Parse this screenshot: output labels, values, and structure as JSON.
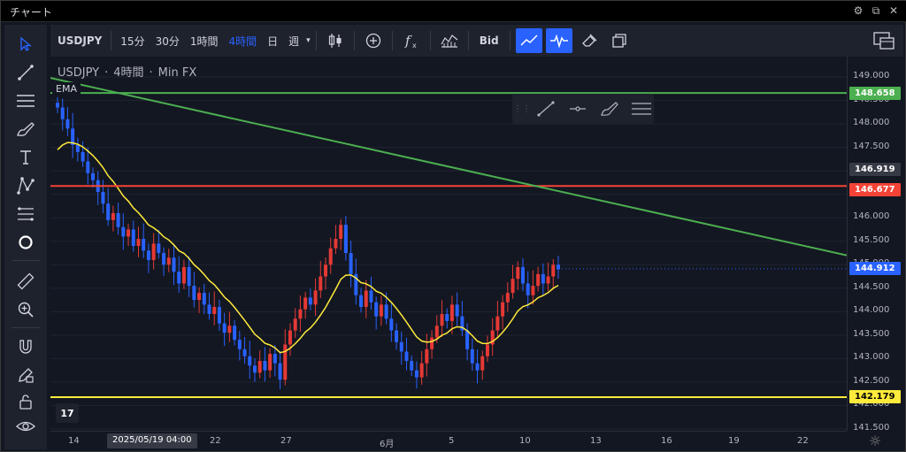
{
  "window": {
    "title": "チャート"
  },
  "toolbar": {
    "symbol": "USDJPY",
    "intervals": [
      "15分",
      "30分",
      "1時間",
      "4時間",
      "日",
      "週"
    ],
    "active_interval": "4時間",
    "bid_label": "Bid"
  },
  "legend": {
    "symbol": "USDJPY",
    "separator": "·",
    "interval": "4時間",
    "source": "Min FX",
    "indicator": "EMA"
  },
  "logo_text": "17",
  "price_axis": {
    "ticks": [
      "149.000",
      "148.500",
      "148.000",
      "147.500",
      "147.000",
      "146.500",
      "146.000",
      "145.500",
      "145.000",
      "144.500",
      "144.000",
      "143.500",
      "143.000",
      "142.500",
      "142.000",
      "141.500"
    ],
    "labels": {
      "green_line": "148.658",
      "crosshair": "146.919",
      "red_line": "146.677",
      "last_price": "144.912",
      "yellow_line": "142.179"
    }
  },
  "time_axis": {
    "ticks": [
      "14",
      "22",
      "27",
      "6月",
      "5",
      "10",
      "13",
      "16",
      "19",
      "22"
    ],
    "cursor_label": "2025/05/19  04:00"
  },
  "colors": {
    "background": "#131722",
    "panel": "#1e222d",
    "accent": "#2962ff",
    "up_candle": "#e53935",
    "down_candle": "#2962ff",
    "ema": "#ffeb3b",
    "green_line": "#4caf50",
    "red_line": "#f44336",
    "yellow_line": "#ffeb3b",
    "trend_line": "#4caf50"
  },
  "icons": {
    "left_toolbar": [
      "cursor-arrow-icon",
      "trend-line-icon",
      "fib-lines-icon",
      "brush-icon",
      "text-icon",
      "pattern-icon",
      "prediction-icon",
      "circle-icon",
      "ruler-icon",
      "zoom-in-icon",
      "magnet-icon",
      "lock-pencil-icon",
      "lock-icon",
      "eye-icon"
    ],
    "top_toolbar": [
      "candle-type-icon",
      "add-compare-icon",
      "indicators-icon",
      "templates-icon",
      "trend-line-toggle-icon",
      "pulse-toggle-icon",
      "eraser-icon",
      "copy-icon",
      "layout-icon"
    ]
  },
  "chart_data": {
    "type": "candlestick",
    "symbol": "USDJPY",
    "interval": "4時間",
    "ylim": [
      141.5,
      149.0
    ],
    "xlabel": "",
    "ylabel": "",
    "horizontal_lines": [
      {
        "price": 148.658,
        "color": "#4caf50"
      },
      {
        "price": 146.677,
        "color": "#f44336"
      },
      {
        "price": 142.179,
        "color": "#ffeb3b"
      }
    ],
    "trend_line": {
      "start_price": 148.98,
      "end_price": 145.2
    },
    "last_price": 144.912,
    "x_ticks": [
      "14",
      "22",
      "27",
      "6月",
      "5",
      "10",
      "13",
      "16",
      "19",
      "22"
    ],
    "closes": [
      148.35,
      148.1,
      147.9,
      147.55,
      147.4,
      147.2,
      146.95,
      146.8,
      146.55,
      146.3,
      145.95,
      146.1,
      145.8,
      145.6,
      145.75,
      145.4,
      145.55,
      145.3,
      145.1,
      145.45,
      145.25,
      145.0,
      145.15,
      144.85,
      144.6,
      144.95,
      144.55,
      144.25,
      144.4,
      144.15,
      143.95,
      144.1,
      143.75,
      143.55,
      143.7,
      143.4,
      143.2,
      143.05,
      142.85,
      142.7,
      142.95,
      142.75,
      143.1,
      142.9,
      142.55,
      143.3,
      143.6,
      143.85,
      144.05,
      144.3,
      144.15,
      144.45,
      144.75,
      145.0,
      145.35,
      145.55,
      145.85,
      145.25,
      144.8,
      144.35,
      144.1,
      144.45,
      144.2,
      143.9,
      144.15,
      143.85,
      143.6,
      143.35,
      143.15,
      142.95,
      142.75,
      142.6,
      142.9,
      143.2,
      143.45,
      143.7,
      143.95,
      143.8,
      144.15,
      143.9,
      143.6,
      143.2,
      142.9,
      142.75,
      143.05,
      143.3,
      143.6,
      143.9,
      144.2,
      144.4,
      144.7,
      144.95,
      144.6,
      144.35,
      144.55,
      144.8,
      144.6,
      144.75,
      145.0,
      144.9
    ]
  }
}
